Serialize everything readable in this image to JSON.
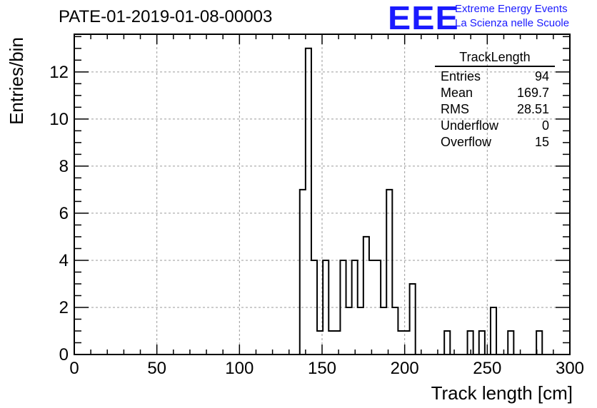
{
  "title": "PATE-01-2019-01-08-00003",
  "logo": {
    "mark": "EEE",
    "line1": "Extreme Energy Events",
    "line2": "La Scienza nelle Scuole",
    "color": "#1a1aff"
  },
  "stats_box": {
    "name": "TrackLength",
    "rows": [
      {
        "label": "Entries",
        "value": "94"
      },
      {
        "label": "Mean",
        "value": "169.7"
      },
      {
        "label": "RMS",
        "value": "28.51"
      },
      {
        "label": "Underflow",
        "value": "0"
      },
      {
        "label": "Overflow",
        "value": "15"
      }
    ]
  },
  "chart_data": {
    "type": "bar",
    "histogram": true,
    "xlabel": "Track length [cm]",
    "ylabel": "Entries/bin",
    "xlim": [
      0,
      300
    ],
    "ylim": [
      0,
      13.6
    ],
    "xticks": [
      0,
      50,
      100,
      150,
      200,
      250,
      300
    ],
    "yticks": [
      0,
      2,
      4,
      6,
      8,
      10,
      12
    ],
    "grid": true,
    "bin_width": 3.5,
    "bins_start": 0,
    "counts": [
      0,
      0,
      0,
      0,
      0,
      0,
      0,
      0,
      0,
      0,
      0,
      0,
      0,
      0,
      0,
      0,
      0,
      0,
      0,
      0,
      0,
      0,
      0,
      0,
      0,
      0,
      0,
      0,
      0,
      0,
      0,
      0,
      0,
      0,
      0,
      0,
      0,
      0,
      0,
      7,
      13,
      4,
      1,
      4,
      1,
      1,
      4,
      2,
      4,
      2,
      5,
      4,
      4,
      2,
      7,
      2,
      1,
      1,
      3,
      0,
      0,
      0,
      0,
      0,
      1,
      0,
      0,
      0,
      1,
      0,
      1,
      0,
      2,
      0,
      0,
      1,
      0,
      0,
      0,
      0,
      0,
      0,
      0,
      0,
      0,
      0
    ],
    "extra_bins": [
      {
        "x": 281.5,
        "count": 1
      }
    ]
  }
}
